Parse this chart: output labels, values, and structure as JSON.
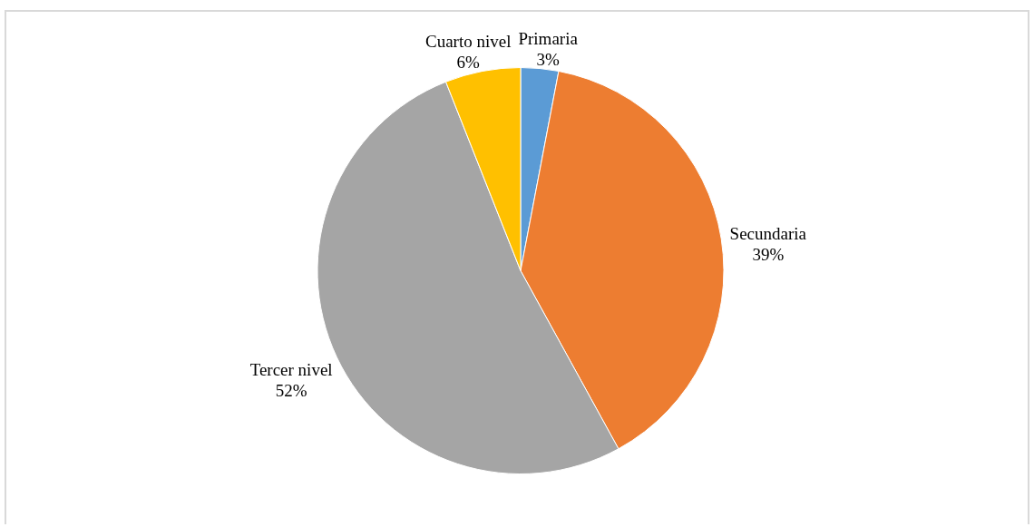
{
  "chart_data": {
    "type": "pie",
    "categories": [
      "Primaria",
      "Secundaria",
      "Tercer nivel",
      "Cuarto nivel"
    ],
    "values": [
      3,
      39,
      52,
      6
    ],
    "value_labels": [
      "3%",
      "39%",
      "52%",
      "6%"
    ],
    "colors": [
      "#5b9bd5",
      "#ed7d31",
      "#a5a5a5",
      "#ffc000"
    ]
  }
}
